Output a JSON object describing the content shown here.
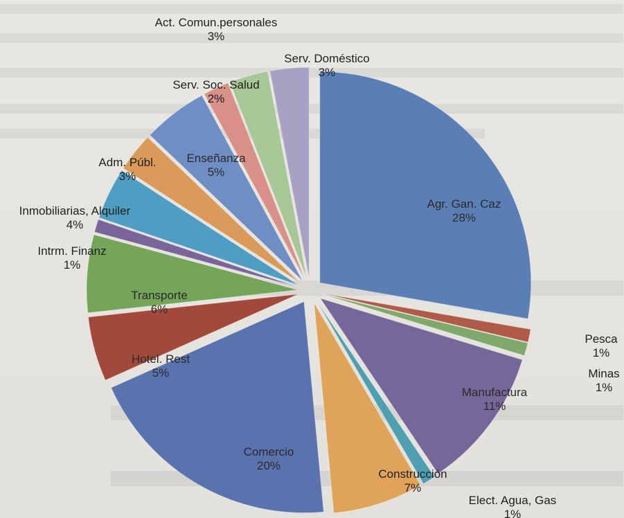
{
  "chart_data": {
    "type": "pie",
    "title": "",
    "slices": [
      {
        "label": "Agr. Gan. Caz",
        "value": 28,
        "value_label": "28%",
        "color": "#5b7fb5"
      },
      {
        "label": "Pesca",
        "value": 1,
        "value_label": "1%",
        "color": "#b05a4a"
      },
      {
        "label": "Minas",
        "value": 1,
        "value_label": "1%",
        "color": "#7fa86b"
      },
      {
        "label": "Manufactura",
        "value": 11,
        "value_label": "11%",
        "color": "#75679a"
      },
      {
        "label": "Elect. Agua, Gas",
        "value": 1,
        "value_label": "1%",
        "color": "#4f9fb0"
      },
      {
        "label": "Construcción",
        "value": 7,
        "value_label": "7%",
        "color": "#e0a35a"
      },
      {
        "label": "Comercio",
        "value": 20,
        "value_label": "20%",
        "color": "#5a72ad"
      },
      {
        "label": "Hotel. Rest",
        "value": 5,
        "value_label": "5%",
        "color": "#a2493c"
      },
      {
        "label": "Transporte",
        "value": 6,
        "value_label": "6%",
        "color": "#74a558"
      },
      {
        "label": "Intrm. Finanz",
        "value": 1,
        "value_label": "1%",
        "color": "#7a659b"
      },
      {
        "label": "Inmobiliarias, Alquiler",
        "value": 4,
        "value_label": "4%",
        "color": "#4d9ec2"
      },
      {
        "label": "Adm. Públ.",
        "value": 3,
        "value_label": "3%",
        "color": "#d99a5a"
      },
      {
        "label": "Enseñanza",
        "value": 5,
        "value_label": "5%",
        "color": "#6f8fc4"
      },
      {
        "label": "Serv. Soc. Salud",
        "value": 2,
        "value_label": "2%",
        "color": "#d99088"
      },
      {
        "label": "Act. Comun.personales",
        "value": 3,
        "value_label": "3%",
        "color": "#a7c796"
      },
      {
        "label": "Serv. Doméstico",
        "value": 3,
        "value_label": "3%",
        "color": "#a9a1c4"
      }
    ],
    "legend": "none"
  }
}
